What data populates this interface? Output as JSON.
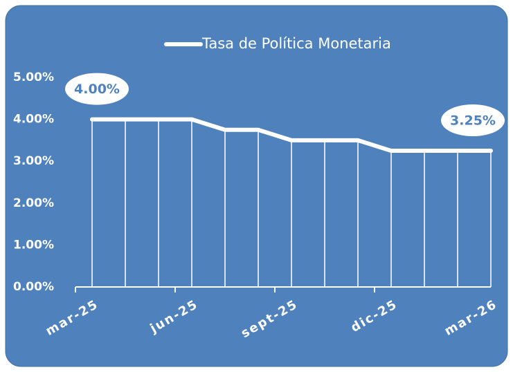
{
  "chart_data": {
    "type": "line",
    "categories": [
      "mar-25",
      null,
      null,
      "jun-25",
      null,
      null,
      "sept-25",
      null,
      null,
      "dic-25",
      null,
      null,
      "mar-26"
    ],
    "series": [
      {
        "name": "Tasa de Política Monetaria",
        "color": "#ffffff",
        "values": [
          4.0,
          4.0,
          4.0,
          4.0,
          3.75,
          3.75,
          3.5,
          3.5,
          3.5,
          3.25,
          3.25,
          3.25,
          3.25
        ],
        "value_labels": [
          "4.00%",
          null,
          null,
          null,
          null,
          null,
          null,
          null,
          null,
          null,
          null,
          null,
          "3.25%"
        ]
      }
    ],
    "ylim": [
      0,
      5
    ],
    "yticks": [
      {
        "value": 0,
        "label": "0.00%"
      },
      {
        "value": 1,
        "label": "1.00%"
      },
      {
        "value": 2,
        "label": "2.00%"
      },
      {
        "value": 3,
        "label": "3.00%"
      },
      {
        "value": 4,
        "label": "4.00%"
      },
      {
        "value": 5,
        "label": "5.00%"
      }
    ],
    "legend": "top"
  }
}
